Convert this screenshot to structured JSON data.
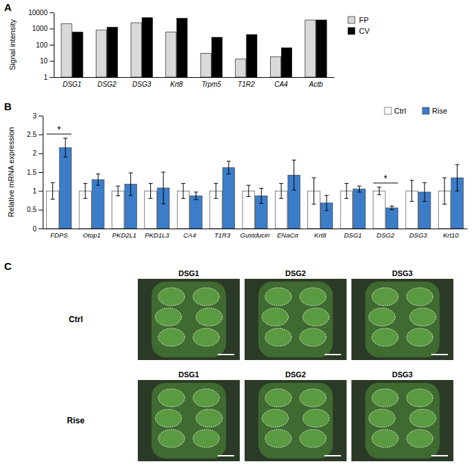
{
  "chart_data": [
    {
      "type": "bar",
      "title": "A",
      "y_label": "Signal intensity",
      "categories": [
        "DSG1",
        "DSG2",
        "DSG3",
        "Krt8",
        "Trpm5",
        "T1R2",
        "CA4",
        "Actb"
      ],
      "series": [
        {
          "name": "FP",
          "color": "#d9d9d9",
          "values": [
            2000,
            800,
            2300,
            600,
            30,
            13,
            18,
            3400
          ]
        },
        {
          "name": "CV",
          "color": "#000000",
          "values": [
            600,
            1200,
            4700,
            4300,
            290,
            430,
            65,
            3400
          ]
        }
      ],
      "log": "y",
      "ylim": [
        1,
        10000
      ],
      "yticks": [
        1,
        10,
        100,
        1000,
        10000
      ],
      "legend": "right"
    },
    {
      "type": "bar",
      "title": "B",
      "y_label": "Relative mRNA expression",
      "categories": [
        "FDPS",
        "Otop1",
        "PKD2L1",
        "PKD1L3",
        "CA4",
        "T1R3",
        "Gustducin",
        "ENaCα",
        "Krt8",
        "DSG1",
        "DSG2",
        "DSG3",
        "Krt10"
      ],
      "series": [
        {
          "name": "Ctrl",
          "color": "#ffffff",
          "values": [
            1,
            1,
            1,
            1,
            1,
            1,
            1,
            1,
            1,
            1,
            1,
            1,
            1
          ],
          "errors": [
            0.22,
            0.2,
            0.13,
            0.2,
            0.2,
            0.2,
            0.15,
            0.2,
            0.35,
            0.2,
            0.1,
            0.28,
            0.35
          ]
        },
        {
          "name": "Rise",
          "color": "#3b7dc9",
          "values": [
            2.15,
            1.3,
            1.18,
            1.08,
            0.87,
            1.62,
            0.87,
            1.42,
            0.68,
            1.05,
            0.55,
            0.97,
            1.35
          ],
          "errors": [
            0.25,
            0.15,
            0.3,
            0.42,
            0.1,
            0.17,
            0.2,
            0.4,
            0.2,
            0.08,
            0.05,
            0.25,
            0.35
          ]
        }
      ],
      "ylim": [
        0,
        3
      ],
      "yticks": [
        0,
        0.5,
        1,
        1.5,
        2,
        2.5,
        3
      ],
      "legend": "top-right",
      "annotations": [
        {
          "text": "*",
          "category": "FDPS"
        },
        {
          "text": "*",
          "category": "DSG2"
        }
      ]
    }
  ],
  "panel_c": {
    "title": "C",
    "columns": [
      "DSG1",
      "DSG2",
      "DSG3"
    ],
    "rows": [
      "Ctrl",
      "Rise"
    ]
  }
}
